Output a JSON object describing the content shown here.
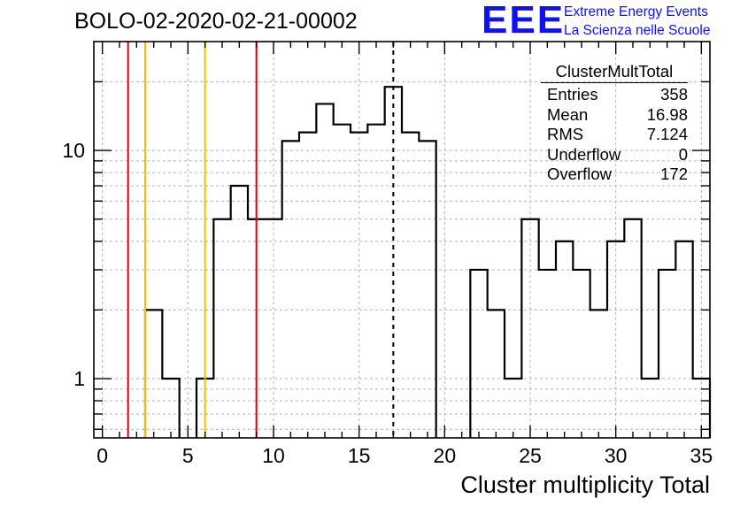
{
  "header": {
    "title": "BOLO-02-2020-02-21-00002"
  },
  "logo": {
    "mark": "EEE",
    "line1": "Extreme Energy Events",
    "line2": "La Scienza nelle Scuole",
    "color": "#1010f0"
  },
  "stats_box": {
    "title": "ClusterMultTotal",
    "rows": [
      {
        "label": "Entries",
        "value": "358"
      },
      {
        "label": "Mean",
        "value": "16.98"
      },
      {
        "label": "RMS",
        "value": "7.124"
      },
      {
        "label": "Underflow",
        "value": "0"
      },
      {
        "label": "Overflow",
        "value": "172"
      }
    ]
  },
  "chart_data": {
    "type": "histogram",
    "title": "BOLO-02-2020-02-21-00002",
    "xlabel": "Cluster multiplicity Total",
    "ylabel": "",
    "y_scale": "log",
    "xlim": [
      -0.5,
      35.5
    ],
    "ylim": [
      0.55,
      30
    ],
    "grid": true,
    "x_ticks": [
      0,
      5,
      10,
      15,
      20,
      25,
      30,
      35
    ],
    "y_ticks": [
      1,
      10
    ],
    "bin_width": 1,
    "bins": [
      {
        "x": 0,
        "y": 0
      },
      {
        "x": 1,
        "y": 0
      },
      {
        "x": 2,
        "y": 0
      },
      {
        "x": 3,
        "y": 2
      },
      {
        "x": 4,
        "y": 1
      },
      {
        "x": 5,
        "y": 0
      },
      {
        "x": 6,
        "y": 1
      },
      {
        "x": 7,
        "y": 5
      },
      {
        "x": 8,
        "y": 7
      },
      {
        "x": 9,
        "y": 5
      },
      {
        "x": 10,
        "y": 5
      },
      {
        "x": 11,
        "y": 11
      },
      {
        "x": 12,
        "y": 12
      },
      {
        "x": 13,
        "y": 16
      },
      {
        "x": 14,
        "y": 13
      },
      {
        "x": 15,
        "y": 12
      },
      {
        "x": 16,
        "y": 13
      },
      {
        "x": 17,
        "y": 19
      },
      {
        "x": 18,
        "y": 12
      },
      {
        "x": 19,
        "y": 11
      },
      {
        "x": 20,
        "y": 0
      },
      {
        "x": 21,
        "y": 0
      },
      {
        "x": 22,
        "y": 3
      },
      {
        "x": 23,
        "y": 2
      },
      {
        "x": 24,
        "y": 1
      },
      {
        "x": 25,
        "y": 5
      },
      {
        "x": 26,
        "y": 3
      },
      {
        "x": 27,
        "y": 4
      },
      {
        "x": 28,
        "y": 3
      },
      {
        "x": 29,
        "y": 2
      },
      {
        "x": 30,
        "y": 4
      },
      {
        "x": 31,
        "y": 5
      },
      {
        "x": 32,
        "y": 1
      },
      {
        "x": 33,
        "y": 3
      },
      {
        "x": 34,
        "y": 4
      },
      {
        "x": 35,
        "y": 1
      }
    ],
    "vertical_lines": [
      {
        "x": 1.5,
        "color": "#e00000",
        "style": "solid"
      },
      {
        "x": 2.5,
        "color": "#f0c000",
        "style": "solid"
      },
      {
        "x": 6.0,
        "color": "#f0c000",
        "style": "solid"
      },
      {
        "x": 9.0,
        "color": "#e00000",
        "style": "solid"
      },
      {
        "x": 17.0,
        "color": "#000000",
        "style": "dashed"
      }
    ]
  }
}
